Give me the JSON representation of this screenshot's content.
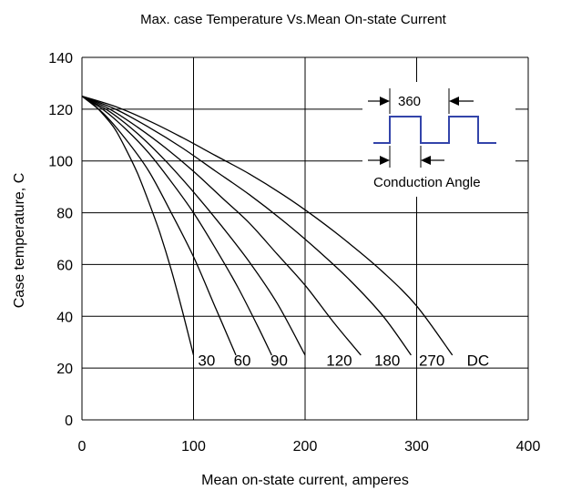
{
  "chart_data": {
    "type": "line",
    "title": "Max. case Temperature Vs.Mean  On-state  Current",
    "xlabel": "Mean on-state  current, amperes",
    "ylabel": "Case temperature,   C",
    "xlim": [
      0,
      400
    ],
    "ylim": [
      0,
      140
    ],
    "xticks": [
      0,
      100,
      200,
      300,
      400
    ],
    "yticks": [
      0,
      20,
      40,
      60,
      80,
      100,
      120,
      140
    ],
    "grid": true,
    "series": [
      {
        "name": "30",
        "x": [
          0,
          10,
          20,
          30,
          40,
          50,
          60,
          70,
          80,
          90,
          100
        ],
        "y": [
          125,
          122,
          117.5,
          112,
          104,
          95,
          84,
          72,
          58,
          42,
          25
        ]
      },
      {
        "name": "60",
        "x": [
          0,
          20,
          40,
          60,
          80,
          100,
          120,
          138
        ],
        "y": [
          125,
          118,
          108,
          96,
          80,
          63,
          43,
          25
        ]
      },
      {
        "name": "90",
        "x": [
          0,
          20,
          40,
          60,
          80,
          100,
          120,
          140,
          160,
          170
        ],
        "y": [
          125,
          119.5,
          112,
          103,
          92,
          80,
          66,
          51,
          34,
          25
        ]
      },
      {
        "name": "120",
        "x": [
          0,
          25,
          50,
          75,
          100,
          125,
          150,
          175,
          200
        ],
        "y": [
          125,
          119,
          110.5,
          100,
          88,
          75,
          61,
          45,
          25
        ]
      },
      {
        "name": "180",
        "x": [
          0,
          25,
          50,
          75,
          100,
          125,
          150,
          175,
          200,
          225,
          250
        ],
        "y": [
          125,
          120,
          113,
          105,
          96,
          86,
          76,
          64,
          52,
          38,
          25
        ]
      },
      {
        "name": "270",
        "x": [
          0,
          30,
          60,
          90,
          120,
          150,
          180,
          210,
          240,
          270,
          295
        ],
        "y": [
          125,
          120,
          113,
          105,
          96,
          87,
          77,
          66,
          54,
          40,
          25
        ]
      },
      {
        "name": "DC",
        "x": [
          0,
          30,
          60,
          90,
          120,
          150,
          180,
          210,
          240,
          270,
          300,
          332
        ],
        "y": [
          125,
          121,
          115.5,
          109,
          102,
          95,
          87,
          78,
          68,
          57,
          44,
          25
        ]
      }
    ],
    "curve_labels": [
      {
        "text": "30",
        "x": 104
      },
      {
        "text": "60",
        "x": 136
      },
      {
        "text": "90",
        "x": 169
      },
      {
        "text": "120",
        "x": 219
      },
      {
        "text": "180",
        "x": 262
      },
      {
        "text": "270",
        "x": 302
      },
      {
        "text": "DC",
        "x": 345
      }
    ],
    "curve_label_y": 21,
    "inset": {
      "period_label": "360",
      "conduction_label": "Conduction Angle",
      "waveform_color": "#3344aa"
    }
  }
}
